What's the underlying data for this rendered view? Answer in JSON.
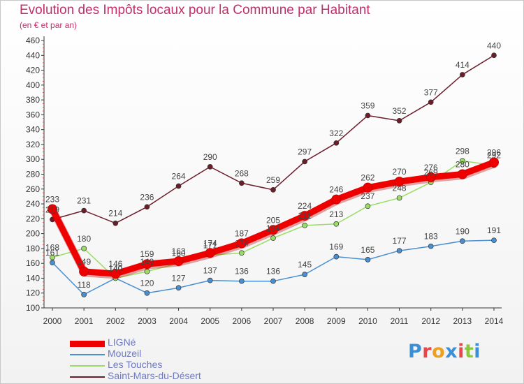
{
  "title": "Evolution des Impôts locaux pour la Commune par Habitant",
  "subtitle": "(en € et par an)",
  "logo": {
    "text": "Proxiti",
    "colors": [
      "#3a8fd6",
      "#e8474a",
      "#f0a020",
      "#3a8fd6",
      "#e8474a",
      "#8cc63f",
      "#3a8fd6"
    ]
  },
  "chart_data": {
    "type": "line",
    "x": [
      2000,
      2001,
      2002,
      2003,
      2004,
      2005,
      2006,
      2007,
      2008,
      2009,
      2010,
      2011,
      2012,
      2013,
      2014
    ],
    "ylim": [
      100,
      460
    ],
    "yticks": [
      100,
      120,
      140,
      160,
      180,
      200,
      220,
      240,
      260,
      280,
      300,
      320,
      340,
      360,
      380,
      400,
      420,
      440,
      460
    ],
    "grid": false,
    "legend_position": "bottom-left",
    "series": [
      {
        "name": "Saint-Mars-du-Désert",
        "color": "#6b1e2a",
        "values": [
          219,
          231,
          214,
          236,
          264,
          290,
          268,
          259,
          297,
          322,
          359,
          352,
          377,
          414,
          440
        ],
        "labels": [
          "219",
          "231",
          "214",
          "236",
          "264",
          "290",
          "268",
          "259",
          "297",
          "322",
          "359",
          "352",
          "377",
          "414",
          "440"
        ]
      },
      {
        "name": "Mouzeil",
        "color": "#4a8fcf",
        "values": [
          161,
          118,
          140,
          120,
          127,
          137,
          136,
          136,
          145,
          169,
          165,
          177,
          183,
          190,
          191
        ],
        "labels": [
          "161",
          "118",
          "140",
          "120",
          "127",
          "137",
          "136",
          "136",
          "145",
          "169",
          "165",
          "177",
          "183",
          "190",
          "191"
        ]
      },
      {
        "name": "Les Touches",
        "color": "#99dd66",
        "values": [
          168,
          180,
          140,
          149,
          160,
          171,
          174,
          194,
          211,
          213,
          237,
          248,
          269,
          298,
          292
        ],
        "labels": [
          "168",
          "180",
          "140",
          "149",
          "160",
          "171",
          "174",
          "194",
          "211",
          "213",
          "237",
          "248",
          "269",
          "298",
          "292"
        ]
      },
      {
        "name": "LIGNé",
        "color": "#ee0000",
        "values": [
          233,
          149,
          146,
          159,
          163,
          174,
          187,
          205,
          224,
          246,
          262,
          270,
          276,
          280,
          296
        ],
        "labels": [
          "233",
          "149",
          "146",
          "159",
          "163",
          "174",
          "187",
          "205",
          "224",
          "246",
          "262",
          "270",
          "276",
          "280",
          "296"
        ]
      }
    ]
  },
  "legend": [
    {
      "label": "LIGNé",
      "color": "#ee0000",
      "thickness": 9,
      "text_color": "#6e79c0"
    },
    {
      "label": "Mouzeil",
      "color": "#4a8fcf",
      "thickness": 2,
      "text_color": "#6e79c0"
    },
    {
      "label": "Les Touches",
      "color": "#99dd66",
      "thickness": 2,
      "text_color": "#6e79c0"
    },
    {
      "label": "Saint-Mars-du-Désert",
      "color": "#6b1e2a",
      "thickness": 2,
      "text_color": "#6e79c0"
    }
  ]
}
